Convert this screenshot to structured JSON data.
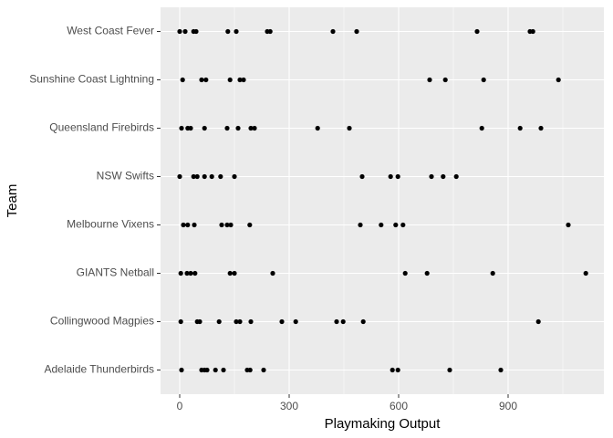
{
  "chart_data": {
    "type": "strip",
    "xlabel": "Playmaking Output",
    "ylabel": "Team",
    "categories": [
      "Adelaide Thunderbirds",
      "Collingwood Magpies",
      "GIANTS Netball",
      "Melbourne Vixens",
      "NSW Swifts",
      "Queensland Firebirds",
      "Sunshine Coast Lightning",
      "West Coast Fever"
    ],
    "values": [
      [
        5,
        60,
        68,
        75,
        98,
        120,
        185,
        193,
        230,
        583,
        598,
        740,
        880
      ],
      [
        3,
        48,
        55,
        108,
        155,
        165,
        195,
        280,
        318,
        430,
        448,
        503,
        983
      ],
      [
        3,
        20,
        30,
        42,
        138,
        150,
        255,
        618,
        678,
        858,
        1113
      ],
      [
        10,
        22,
        40,
        115,
        130,
        140,
        192,
        495,
        552,
        592,
        612,
        1065
      ],
      [
        0,
        38,
        48,
        68,
        88,
        112,
        150,
        500,
        578,
        598,
        690,
        722,
        758
      ],
      [
        5,
        22,
        30,
        68,
        130,
        160,
        195,
        205,
        378,
        465,
        828,
        933,
        990
      ],
      [
        8,
        60,
        72,
        138,
        165,
        175,
        685,
        728,
        833,
        1038
      ],
      [
        0,
        15,
        38,
        45,
        132,
        155,
        240,
        248,
        420,
        485,
        815,
        960,
        968
      ]
    ],
    "color": "#000000",
    "xlim": [
      -52.5,
      1162.5
    ],
    "xticks": [
      0,
      300,
      600,
      900
    ],
    "xminorticks": [
      150,
      450,
      750,
      1050
    ],
    "grid": true
  }
}
